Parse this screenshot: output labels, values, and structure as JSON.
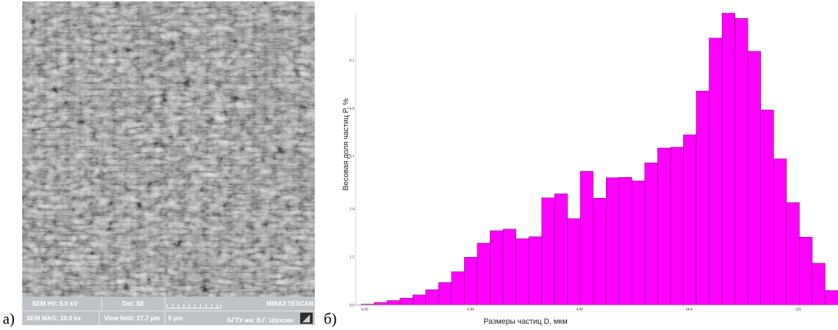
{
  "panel_labels": {
    "a": "а)",
    "b": "б)"
  },
  "sem_info": {
    "hv": "SEM HV: 5.0 kV",
    "det": "Det: SE",
    "brand": "MIRA3 TESCAN",
    "mag": "SEM MAG: 10.0 kx",
    "view_field": "View field: 27.7 μm",
    "scale": "5 μm",
    "institution": "БГТУ им. В.Г. Шухова"
  },
  "colors": {
    "bar_fill": "#ff00ff",
    "bar_stroke": "#7a007a",
    "sem_bar": "#bfc3c7"
  },
  "chart_data": {
    "type": "bar",
    "xlabel": "Размеры частиц D, мкм",
    "ylabel": "Весовая доля частиц Р, %",
    "y_tick_labels": [
      "0.0",
      "1.2",
      "2.4",
      "3.7",
      "4.9",
      "6.1"
    ],
    "x_tick_labels": [
      "0.20",
      "0.99",
      "4.92",
      "24.4",
      "121"
    ],
    "x_scale": "log",
    "grid": false,
    "values": [
      0.02,
      0.06,
      0.11,
      0.17,
      0.25,
      0.38,
      0.56,
      0.83,
      1.19,
      1.54,
      1.85,
      1.89,
      1.65,
      1.7,
      2.67,
      2.77,
      2.15,
      3.33,
      2.66,
      3.17,
      3.18,
      3.09,
      3.54,
      3.91,
      3.93,
      4.24,
      5.33,
      6.65,
      7.27,
      7.14,
      6.32,
      4.86,
      3.64,
      2.55,
      1.69,
      1.04,
      0.36
    ]
  }
}
